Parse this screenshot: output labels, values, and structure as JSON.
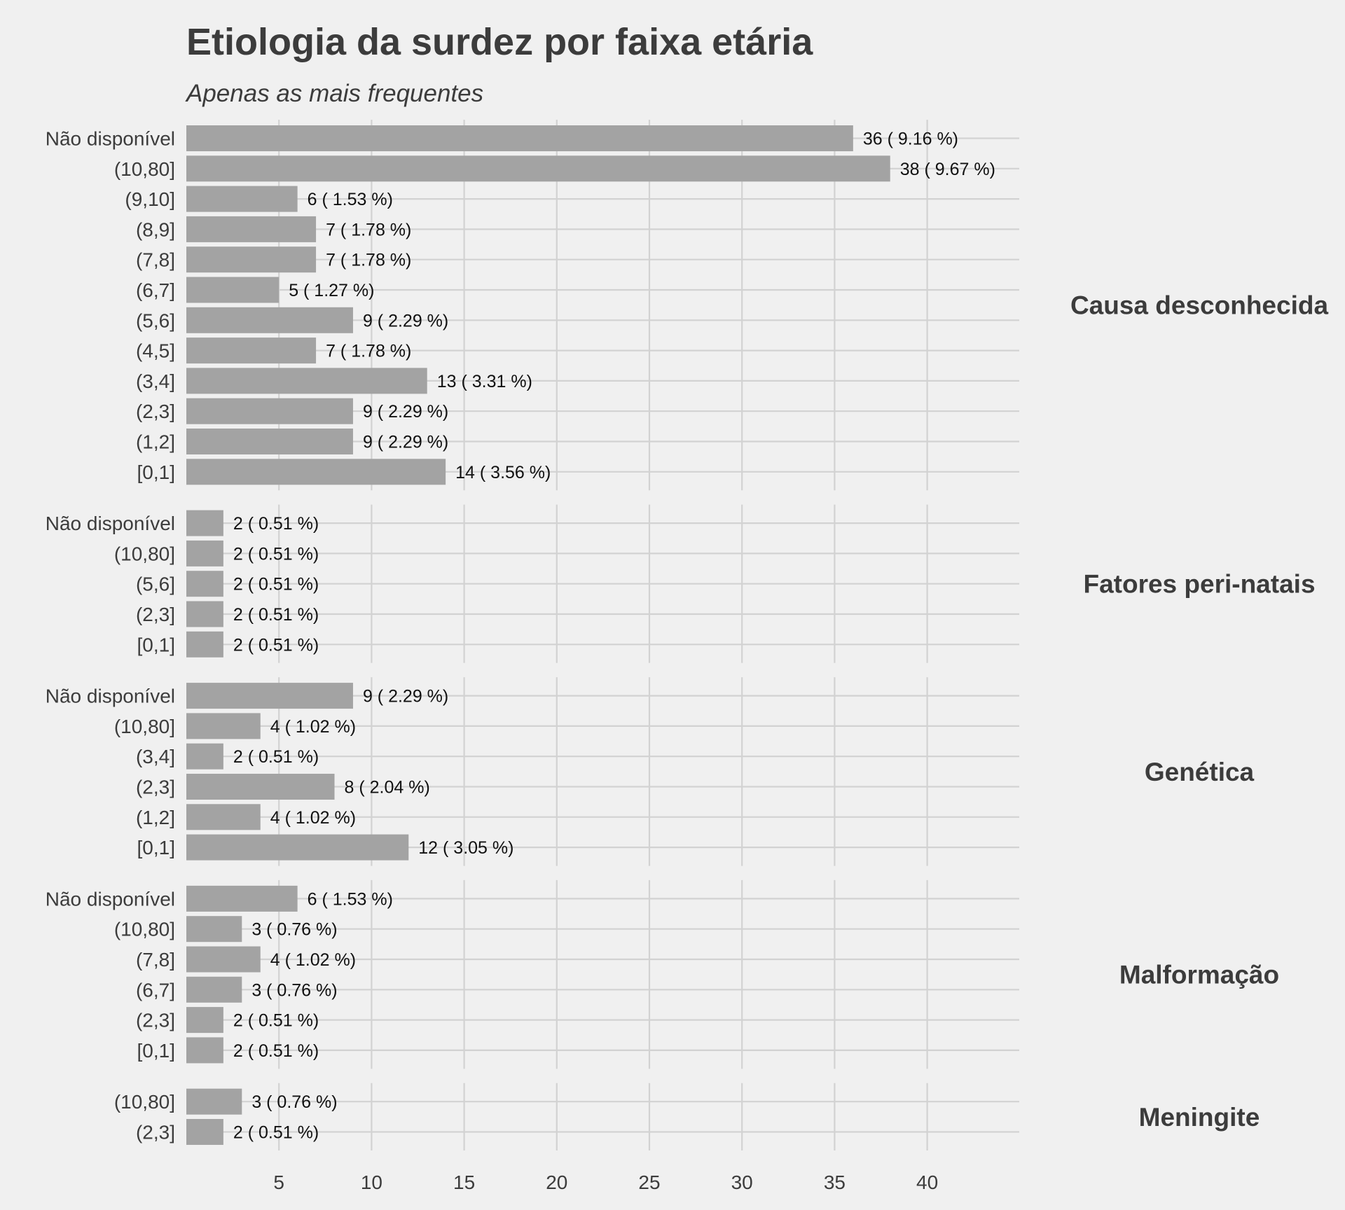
{
  "chart_data": {
    "type": "bar",
    "orientation": "horizontal",
    "title": "Etiologia da surdez por faixa etária",
    "subtitle": "Apenas as mais frequentes",
    "xlim": [
      0,
      45
    ],
    "x_ticks": [
      5,
      10,
      15,
      20,
      25,
      30,
      35,
      40
    ],
    "grid": true,
    "colors": {
      "background": "#f0f0f0",
      "bar": "#a3a3a3",
      "grid": "#d2d2d2",
      "text": "#3c3c3c"
    },
    "facets": [
      {
        "name": "Causa desconhecida",
        "bars": [
          {
            "category": "Não disponível",
            "value": 36,
            "label": "36 ( 9.16 %)"
          },
          {
            "category": "(10,80]",
            "value": 38,
            "label": "38 ( 9.67 %)"
          },
          {
            "category": "(9,10]",
            "value": 6,
            "label": "6 ( 1.53 %)"
          },
          {
            "category": "(8,9]",
            "value": 7,
            "label": "7 ( 1.78 %)"
          },
          {
            "category": "(7,8]",
            "value": 7,
            "label": "7 ( 1.78 %)"
          },
          {
            "category": "(6,7]",
            "value": 5,
            "label": "5 ( 1.27 %)"
          },
          {
            "category": "(5,6]",
            "value": 9,
            "label": "9 ( 2.29 %)"
          },
          {
            "category": "(4,5]",
            "value": 7,
            "label": "7 ( 1.78 %)"
          },
          {
            "category": "(3,4]",
            "value": 13,
            "label": "13 ( 3.31 %)"
          },
          {
            "category": "(2,3]",
            "value": 9,
            "label": "9 ( 2.29 %)"
          },
          {
            "category": "(1,2]",
            "value": 9,
            "label": "9 ( 2.29 %)"
          },
          {
            "category": "[0,1]",
            "value": 14,
            "label": "14 ( 3.56 %)"
          }
        ]
      },
      {
        "name": "Fatores peri-natais",
        "bars": [
          {
            "category": "Não disponível",
            "value": 2,
            "label": "2 ( 0.51 %)"
          },
          {
            "category": "(10,80]",
            "value": 2,
            "label": "2 ( 0.51 %)"
          },
          {
            "category": "(5,6]",
            "value": 2,
            "label": "2 ( 0.51 %)"
          },
          {
            "category": "(2,3]",
            "value": 2,
            "label": "2 ( 0.51 %)"
          },
          {
            "category": "[0,1]",
            "value": 2,
            "label": "2 ( 0.51 %)"
          }
        ]
      },
      {
        "name": "Genética",
        "bars": [
          {
            "category": "Não disponível",
            "value": 9,
            "label": "9 ( 2.29 %)"
          },
          {
            "category": "(10,80]",
            "value": 4,
            "label": "4 ( 1.02 %)"
          },
          {
            "category": "(3,4]",
            "value": 2,
            "label": "2 ( 0.51 %)"
          },
          {
            "category": "(2,3]",
            "value": 8,
            "label": "8 ( 2.04 %)"
          },
          {
            "category": "(1,2]",
            "value": 4,
            "label": "4 ( 1.02 %)"
          },
          {
            "category": "[0,1]",
            "value": 12,
            "label": "12 ( 3.05 %)"
          }
        ]
      },
      {
        "name": "Malformação",
        "bars": [
          {
            "category": "Não disponível",
            "value": 6,
            "label": "6 ( 1.53 %)"
          },
          {
            "category": "(10,80]",
            "value": 3,
            "label": "3 ( 0.76 %)"
          },
          {
            "category": "(7,8]",
            "value": 4,
            "label": "4 ( 1.02 %)"
          },
          {
            "category": "(6,7]",
            "value": 3,
            "label": "3 ( 0.76 %)"
          },
          {
            "category": "(2,3]",
            "value": 2,
            "label": "2 ( 0.51 %)"
          },
          {
            "category": "[0,1]",
            "value": 2,
            "label": "2 ( 0.51 %)"
          }
        ]
      },
      {
        "name": "Meningite",
        "bars": [
          {
            "category": "(10,80]",
            "value": 3,
            "label": "3 ( 0.76 %)"
          },
          {
            "category": "(2,3]",
            "value": 2,
            "label": "2 ( 0.51 %)"
          }
        ]
      }
    ]
  }
}
